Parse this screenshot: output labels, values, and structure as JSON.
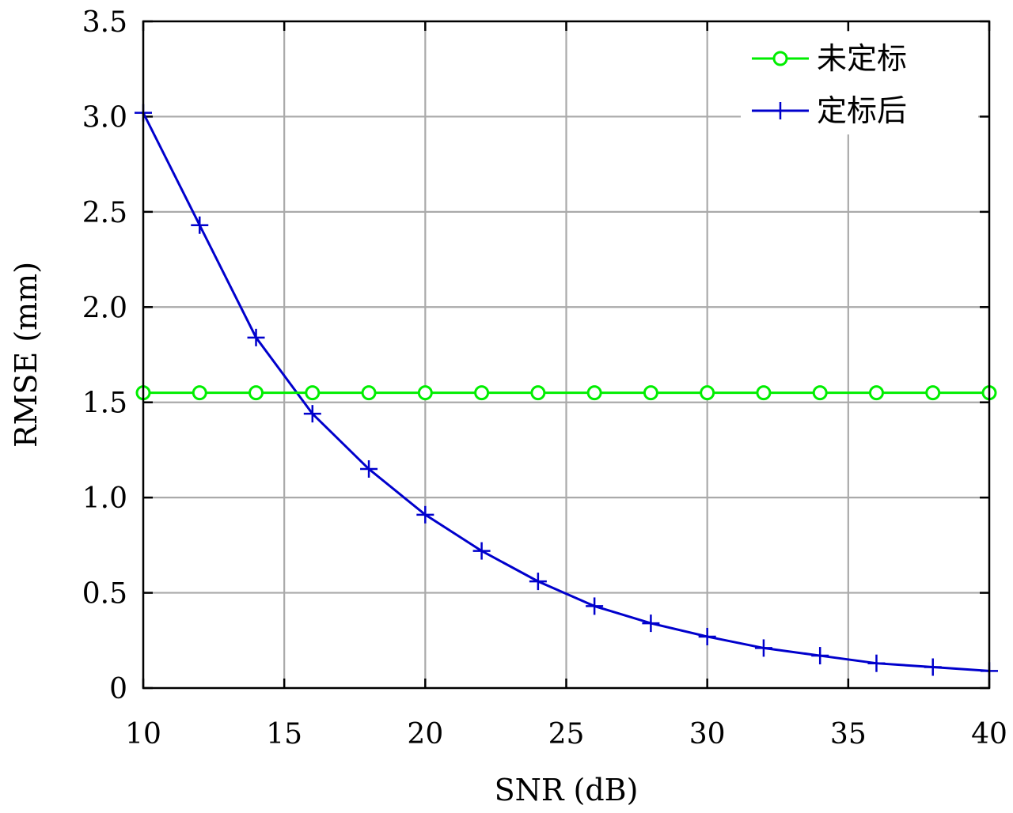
{
  "chart_data": {
    "type": "line",
    "xlabel": "SNR (dB)",
    "ylabel": "RMSE (mm)",
    "xlim": [
      10,
      40
    ],
    "ylim": [
      0,
      3.5
    ],
    "xticks": [
      "10",
      "15",
      "20",
      "25",
      "30",
      "35",
      "40"
    ],
    "yticks": [
      "0",
      "0.5",
      "1.0",
      "1.5",
      "2.0",
      "2.5",
      "3.0",
      "3.5"
    ],
    "grid": true,
    "legend_position": "top-right",
    "x": [
      10,
      12,
      14,
      16,
      18,
      20,
      22,
      24,
      26,
      28,
      30,
      32,
      34,
      36,
      38,
      40
    ],
    "series": [
      {
        "name": "未定标",
        "color": "#00ee00",
        "marker": "circle",
        "values": [
          1.55,
          1.55,
          1.55,
          1.55,
          1.55,
          1.55,
          1.55,
          1.55,
          1.55,
          1.55,
          1.55,
          1.55,
          1.55,
          1.55,
          1.55,
          1.55
        ]
      },
      {
        "name": "定标后",
        "color": "#0000cc",
        "marker": "plus",
        "values": [
          3.02,
          2.43,
          1.84,
          1.44,
          1.15,
          0.91,
          0.72,
          0.56,
          0.43,
          0.34,
          0.27,
          0.21,
          0.17,
          0.13,
          0.11,
          0.09
        ]
      }
    ]
  }
}
